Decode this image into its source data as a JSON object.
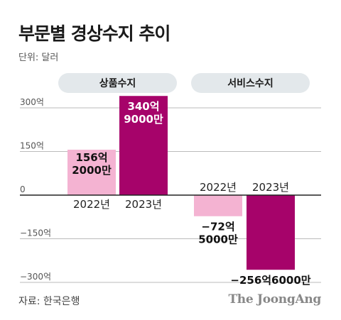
{
  "title": "부문별 경상수지 추이",
  "unit": "단위: 달러",
  "source": "자료: 한국은행",
  "brand": "The JoongAng",
  "colors": {
    "light": "#f4b3d2",
    "dark": "#a6036a",
    "pill": "#e3e8eb",
    "grid": "#bbbbbb",
    "baseline": "#222222"
  },
  "chart_data": {
    "type": "bar",
    "unit": "달러",
    "ylim": [
      -300,
      340
    ],
    "y_ticks": [
      {
        "value": 300,
        "label": "300억"
      },
      {
        "value": 150,
        "label": "150억"
      },
      {
        "value": 0,
        "label": "0"
      },
      {
        "value": -150,
        "label": "−150억"
      },
      {
        "value": -300,
        "label": "−300억"
      }
    ],
    "groups": [
      {
        "name": "상품수지",
        "bars": [
          {
            "year": "2022년",
            "value": 156.2,
            "label": [
              "156억",
              "2000만"
            ],
            "color": "light"
          },
          {
            "year": "2023년",
            "value": 340.9,
            "label": [
              "340억",
              "9000만"
            ],
            "color": "dark"
          }
        ]
      },
      {
        "name": "서비스수지",
        "bars": [
          {
            "year": "2022년",
            "value": -72.5,
            "label": [
              "−72억",
              "5000만"
            ],
            "color": "light"
          },
          {
            "year": "2023년",
            "value": -256.6,
            "label": [
              "−256억6000만"
            ],
            "color": "dark"
          }
        ]
      }
    ]
  }
}
